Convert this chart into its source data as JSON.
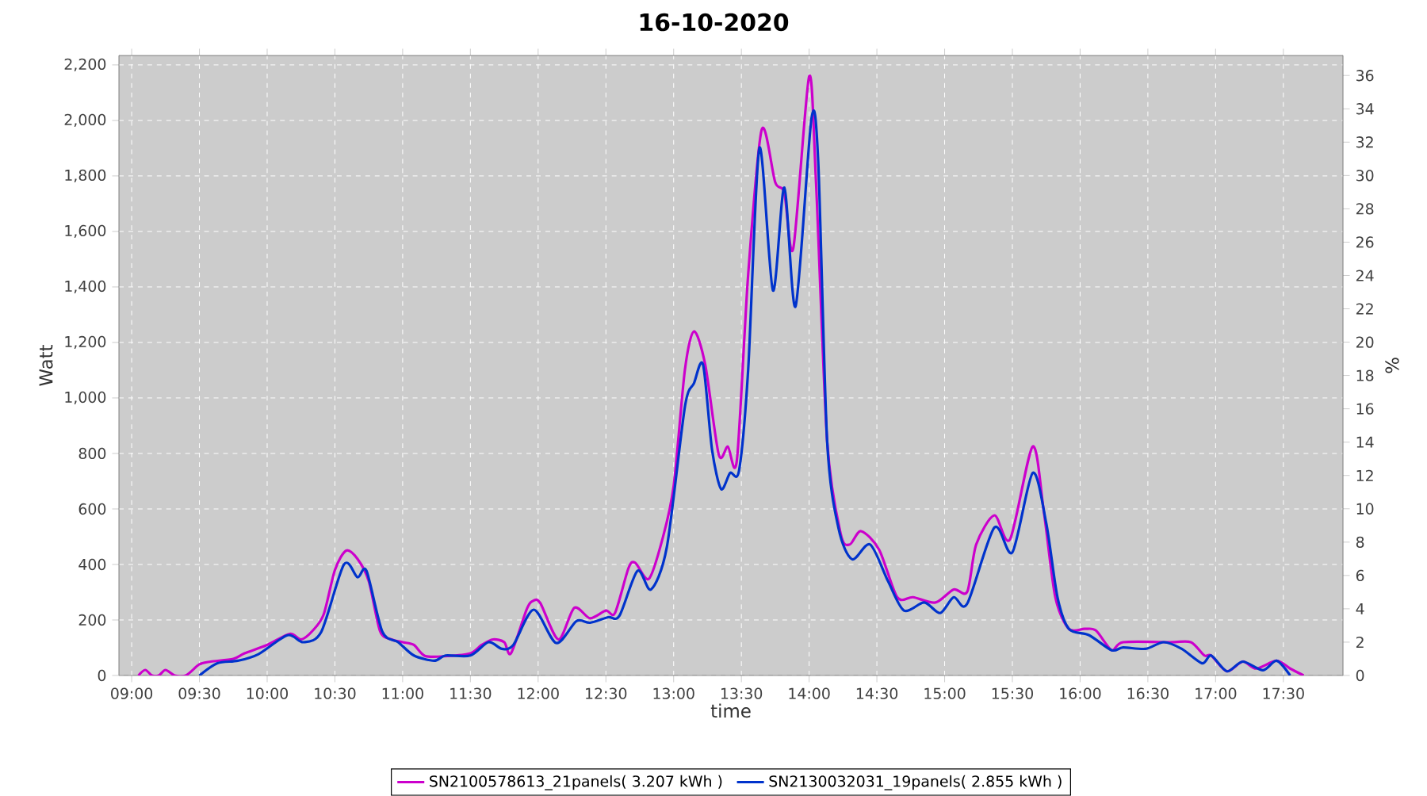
{
  "chart_data": {
    "type": "line",
    "title": "16-10-2020",
    "xlabel": "time",
    "ylabel": "Watt",
    "y2label": "%",
    "xlim": [
      8.906,
      17.94
    ],
    "ylim": [
      0,
      2234
    ],
    "y2lim": [
      0,
      37.2
    ],
    "xticks": [
      {
        "value": 9,
        "label": "09:00"
      },
      {
        "value": 9.5,
        "label": "09:30"
      },
      {
        "value": 10,
        "label": "10:00"
      },
      {
        "value": 10.5,
        "label": "10:30"
      },
      {
        "value": 11,
        "label": "11:00"
      },
      {
        "value": 11.5,
        "label": "11:30"
      },
      {
        "value": 12,
        "label": "12:00"
      },
      {
        "value": 12.5,
        "label": "12:30"
      },
      {
        "value": 13,
        "label": "13:00"
      },
      {
        "value": 13.5,
        "label": "13:30"
      },
      {
        "value": 14,
        "label": "14:00"
      },
      {
        "value": 14.5,
        "label": "14:30"
      },
      {
        "value": 15,
        "label": "15:00"
      },
      {
        "value": 15.5,
        "label": "15:30"
      },
      {
        "value": 16,
        "label": "16:00"
      },
      {
        "value": 16.5,
        "label": "16:30"
      },
      {
        "value": 17,
        "label": "17:00"
      },
      {
        "value": 17.5,
        "label": "17:30"
      }
    ],
    "yticks": [
      0,
      200,
      400,
      600,
      800,
      {
        "value": 1000,
        "label": "1,000"
      },
      {
        "value": 1200,
        "label": "1,200"
      },
      {
        "value": 1400,
        "label": "1,400"
      },
      {
        "value": 1600,
        "label": "1,600"
      },
      {
        "value": 1800,
        "label": "1,800"
      },
      {
        "value": 2000,
        "label": "2,000"
      },
      {
        "value": 2200,
        "label": "2,200"
      }
    ],
    "y2ticks": [
      0,
      2,
      4,
      6,
      8,
      10,
      12,
      14,
      16,
      18,
      20,
      22,
      24,
      26,
      28,
      30,
      32,
      34,
      36
    ],
    "grid": true,
    "legend": "bottom",
    "marker": "none",
    "line_style": "solid",
    "series": [
      {
        "name": "SN2100578613_21panels( 3.207 kWh )",
        "color": "#cc00cc",
        "x": [
          9.05,
          9.1,
          9.15,
          9.2,
          9.25,
          9.317,
          9.4,
          9.5,
          9.583,
          9.75,
          9.833,
          10,
          10.167,
          10.25,
          10.333,
          10.417,
          10.5,
          10.583,
          10.667,
          10.75,
          10.833,
          10.917,
          11,
          11.083,
          11.167,
          11.333,
          11.5,
          11.583,
          11.667,
          11.75,
          11.8,
          11.917,
          11.967,
          12.017,
          12.15,
          12.267,
          12.383,
          12.5,
          12.567,
          12.667,
          12.717,
          12.817,
          12.917,
          13,
          13.083,
          13.15,
          13.233,
          13.333,
          13.4,
          13.467,
          13.55,
          13.65,
          13.75,
          13.817,
          13.883,
          14,
          14.05,
          14.133,
          14.233,
          14.3,
          14.383,
          14.517,
          14.65,
          14.767,
          14.933,
          15.067,
          15.167,
          15.233,
          15.367,
          15.483,
          15.65,
          15.733,
          15.817,
          15.917,
          16.033,
          16.117,
          16.233,
          16.317,
          16.667,
          16.817,
          16.917,
          16.967,
          17.083,
          17.2,
          17.3,
          17.45,
          17.55,
          17.65
        ],
        "values": [
          0,
          20,
          0,
          0,
          20,
          0,
          0,
          40,
          50,
          60,
          80,
          110,
          150,
          130,
          160,
          220,
          380,
          450,
          420,
          340,
          160,
          130,
          120,
          110,
          70,
          70,
          80,
          110,
          130,
          120,
          80,
          240,
          270,
          260,
          130,
          244,
          206,
          234,
          225,
          387,
          406,
          348,
          491,
          682,
          1101,
          1240,
          1120,
          796,
          825,
          777,
          1444,
          1967,
          1777,
          1739,
          1539,
          2158,
          1787,
          844,
          510,
          472,
          520,
          453,
          282,
          282,
          263,
          310,
          302,
          472,
          577,
          491,
          825,
          587,
          282,
          168,
          168,
          162,
          91,
          120,
          120,
          120,
          72,
          72,
          15,
          50,
          25,
          53,
          25,
          0
        ]
      },
      {
        "name": "SN2130032031_19panels( 2.855 kWh )",
        "color": "#0033cc",
        "x": [
          9.5,
          9.633,
          9.783,
          9.933,
          10.15,
          10.267,
          10.4,
          10.567,
          10.667,
          10.733,
          10.85,
          10.967,
          11.083,
          11.233,
          11.317,
          11.5,
          11.633,
          11.733,
          11.817,
          11.967,
          12.133,
          12.283,
          12.383,
          12.517,
          12.6,
          12.733,
          12.833,
          12.95,
          13.083,
          13.15,
          13.217,
          13.283,
          13.35,
          13.417,
          13.483,
          13.55,
          13.633,
          13.733,
          13.817,
          13.9,
          14.017,
          14.067,
          14.133,
          14.217,
          14.317,
          14.45,
          14.583,
          14.7,
          14.85,
          14.967,
          15.067,
          15.167,
          15.367,
          15.5,
          15.65,
          15.75,
          15.833,
          15.917,
          16.067,
          16.233,
          16.317,
          16.483,
          16.617,
          16.75,
          16.9,
          16.967,
          17.083,
          17.2,
          17.35,
          17.45,
          17.55
        ],
        "values": [
          0,
          44,
          53,
          76,
          145,
          120,
          158,
          400,
          354,
          377,
          158,
          120,
          72,
          53,
          72,
          72,
          120,
          96,
          110,
          237,
          117,
          196,
          190,
          210,
          215,
          377,
          310,
          463,
          968,
          1053,
          1120,
          815,
          672,
          730,
          739,
          1101,
          1901,
          1387,
          1758,
          1330,
          2006,
          1853,
          844,
          530,
          419,
          472,
          339,
          234,
          263,
          225,
          282,
          259,
          533,
          444,
          730,
          549,
          282,
          168,
          145,
          91,
          101,
          96,
          120,
          96,
          44,
          72,
          15,
          50,
          19,
          53,
          0
        ]
      }
    ]
  }
}
